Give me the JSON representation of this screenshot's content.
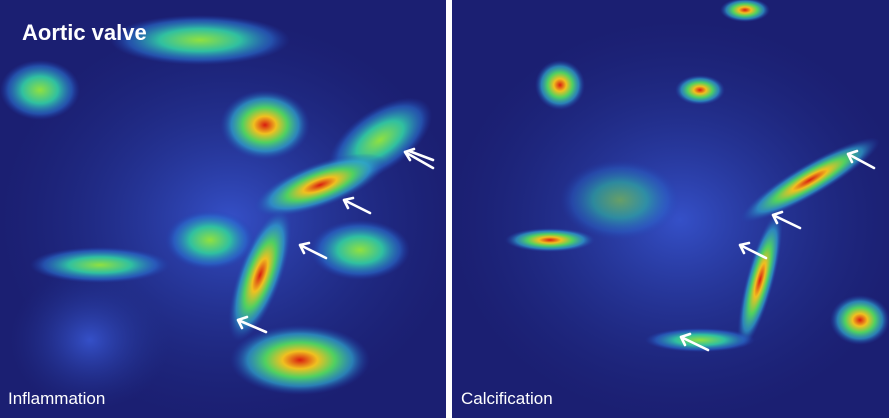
{
  "title": "Aortic valve",
  "panels": [
    {
      "label": "Inflammation"
    },
    {
      "label": "Calcification"
    }
  ]
}
